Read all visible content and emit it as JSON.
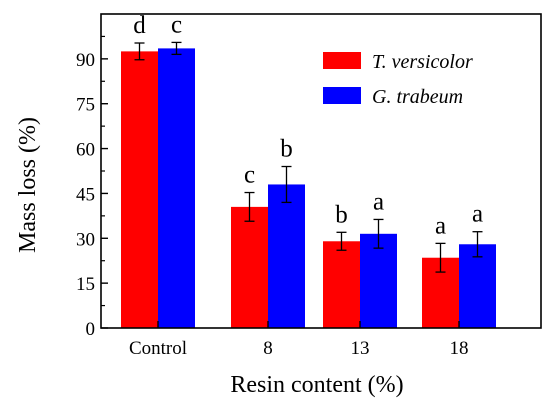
{
  "chart_data": {
    "type": "bar",
    "categories": [
      "Control",
      "8",
      "13",
      "18"
    ],
    "xlabel": "Resin content (%)",
    "ylabel": "Mass loss (%)",
    "ylim": [
      0,
      105
    ],
    "yticks": [
      0,
      15,
      30,
      45,
      60,
      75,
      90
    ],
    "grid": false,
    "legend_position": "top-right",
    "series": [
      {
        "name": "T. versicolor",
        "color": "#ff0000",
        "values": [
          92.5,
          40.5,
          29.0,
          23.5
        ],
        "errors": [
          2.8,
          4.8,
          3.0,
          4.8
        ],
        "letters": [
          "d",
          "c",
          "b",
          "a"
        ]
      },
      {
        "name": "G. trabeum",
        "color": "#0000ff",
        "values": [
          93.5,
          48.0,
          31.5,
          28.0
        ],
        "errors": [
          2.0,
          6.0,
          4.8,
          4.2
        ],
        "letters": [
          "c",
          "b",
          "a",
          "a"
        ]
      }
    ]
  }
}
